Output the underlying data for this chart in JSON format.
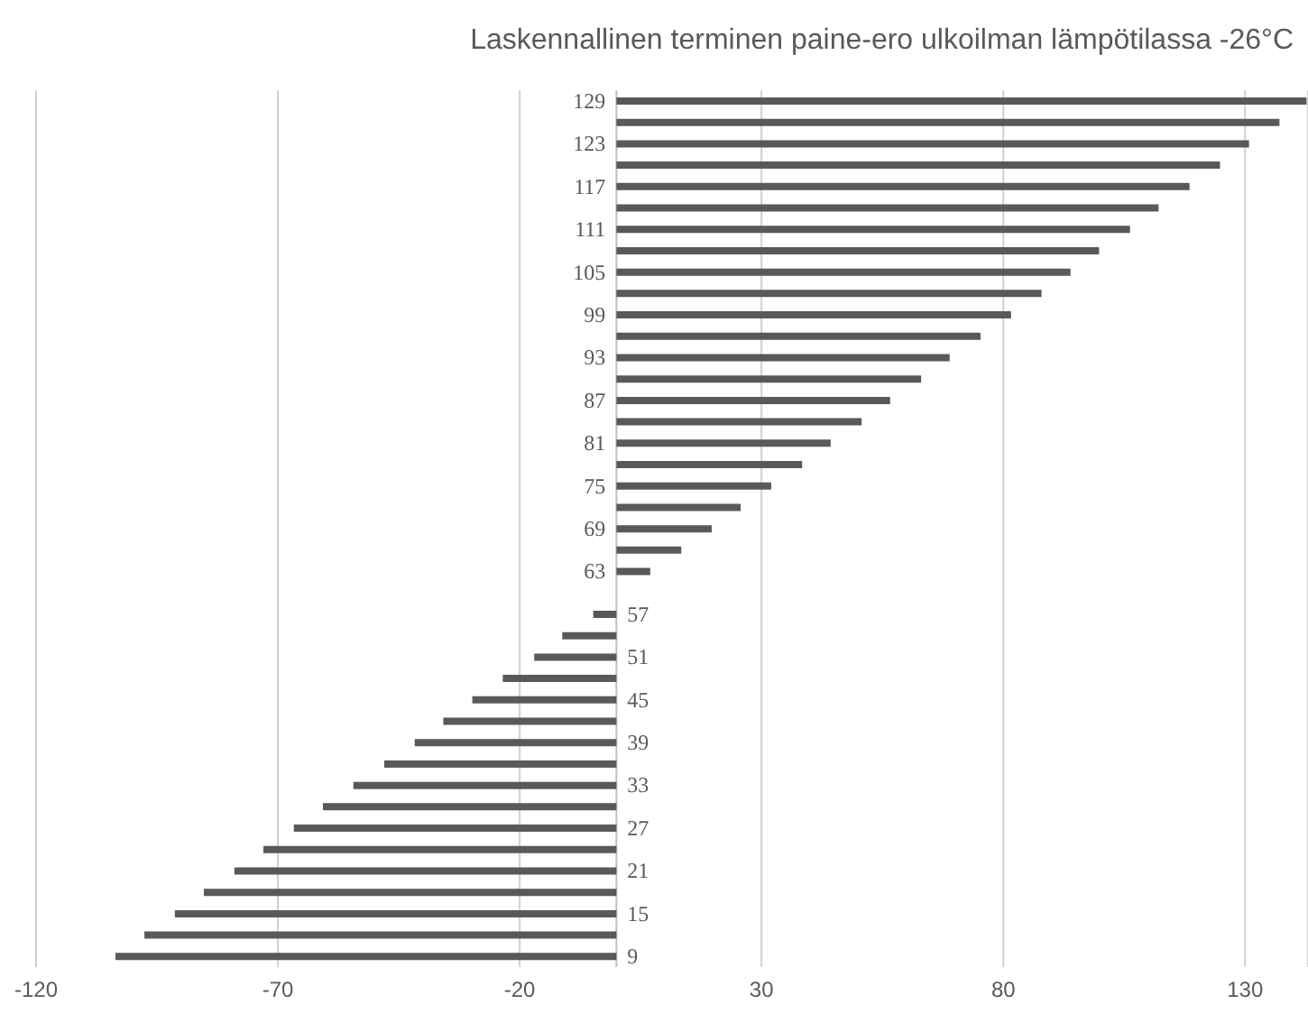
{
  "chart_data": {
    "type": "bar",
    "orientation": "horizontal",
    "title": "Laskennallinen terminen paine-ero ulkoilman lämpötilassa -26°C",
    "categories": [
      "129",
      null,
      "123",
      null,
      "117",
      null,
      "111",
      null,
      "105",
      null,
      "99",
      null,
      "93",
      null,
      "87",
      null,
      "81",
      null,
      "75",
      null,
      "69",
      null,
      "63",
      null,
      "57",
      null,
      "51",
      null,
      "45",
      null,
      "39",
      null,
      "33",
      null,
      "27",
      null,
      "21",
      null,
      "15",
      null,
      "9"
    ],
    "values": [
      142.7,
      137.1,
      130.8,
      124.8,
      118.5,
      112.1,
      106.2,
      99.8,
      93.9,
      87.9,
      81.6,
      75.3,
      68.9,
      63,
      56.6,
      50.7,
      44.3,
      38.4,
      32,
      25.7,
      19.7,
      13.4,
      7,
      0,
      -4.8,
      -11.2,
      -17,
      -23.5,
      -29.8,
      -35.8,
      -41.7,
      -48,
      -54.4,
      -60.7,
      -66.7,
      -73,
      -79,
      -85.3,
      -91.3,
      -97.6,
      -103.6
    ],
    "color": "#595959",
    "xlim": [
      -120,
      143
    ],
    "xticks": [
      -120,
      -70,
      -20,
      30,
      80,
      130
    ],
    "grid": "x"
  }
}
